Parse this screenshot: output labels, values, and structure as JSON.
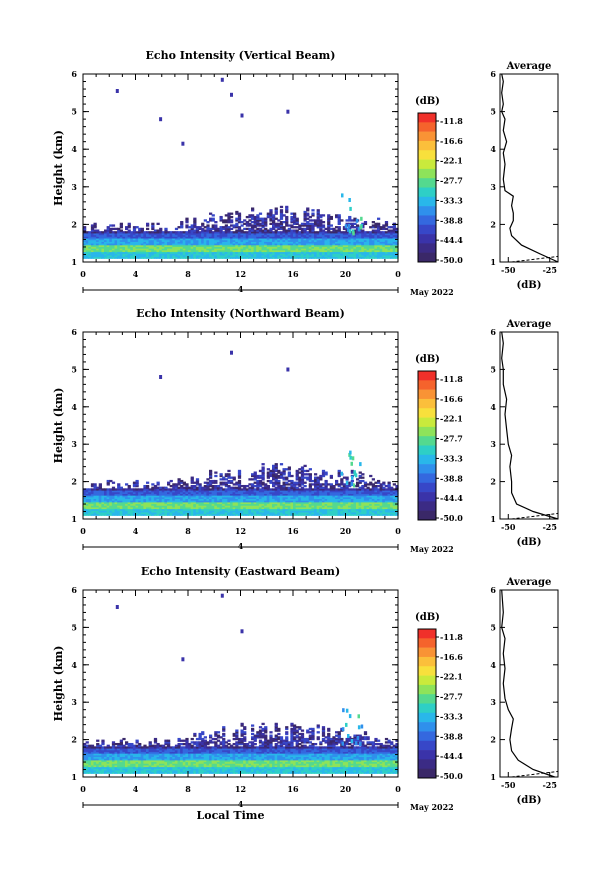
{
  "chart_data": [
    {
      "type": "heatmap",
      "title": "Echo Intensity (Vertical Beam)",
      "xlabel": "",
      "ylabel": "Height (km)",
      "xlim": [
        0,
        24
      ],
      "ylim": [
        1,
        6
      ],
      "xticks": [
        "0",
        "4",
        "8",
        "12",
        "16",
        "20",
        "0"
      ],
      "yticks": [
        "1",
        "2",
        "3",
        "4",
        "5",
        "6"
      ],
      "date_label": "May 2022",
      "date_marker": "4",
      "colorbar": {
        "unit": "(dB)",
        "ticks": [
          "-11.8",
          "-16.6",
          "-22.1",
          "-27.7",
          "-33.3",
          "-38.8",
          "-44.4",
          "-50.0"
        ],
        "colors": [
          "#f0302a",
          "#f5632c",
          "#f99335",
          "#fbbf3b",
          "#f8e03c",
          "#c9ea3c",
          "#8ee35a",
          "#54d98f",
          "#2ecfc6",
          "#29b7ea",
          "#2f90ec",
          "#3468df",
          "#3747c8",
          "#3a33a9",
          "#3b2b85",
          "#3a2868"
        ]
      },
      "average": {
        "title": "Average",
        "xlabel": "(dB)",
        "xticks": [
          "-50",
          "-25"
        ],
        "yticks": [
          "1",
          "2",
          "3",
          "4",
          "5",
          "6"
        ],
        "profile": [
          [
            -20,
            1.0
          ],
          [
            -30,
            1.2
          ],
          [
            -42,
            1.45
          ],
          [
            -48,
            1.7
          ],
          [
            -49,
            1.9
          ],
          [
            -47,
            2.1
          ],
          [
            -47,
            2.3
          ],
          [
            -48,
            2.5
          ],
          [
            -47,
            2.75
          ],
          [
            -52,
            2.9
          ],
          [
            -53,
            3.2
          ],
          [
            -52,
            3.6
          ],
          [
            -53,
            3.9
          ],
          [
            -51,
            4.2
          ],
          [
            -53,
            4.5
          ],
          [
            -52,
            4.8
          ],
          [
            -54,
            5.0
          ],
          [
            -53,
            5.2
          ],
          [
            -54,
            5.5
          ],
          [
            -53,
            5.8
          ],
          [
            -54,
            6.0
          ]
        ]
      }
    },
    {
      "type": "heatmap",
      "title": "Echo Intensity (Northward Beam)",
      "xlabel": "",
      "ylabel": "Height (km)",
      "xlim": [
        0,
        24
      ],
      "ylim": [
        1,
        6
      ],
      "xticks": [
        "0",
        "4",
        "8",
        "12",
        "16",
        "20",
        "0"
      ],
      "yticks": [
        "1",
        "2",
        "3",
        "4",
        "5",
        "6"
      ],
      "date_label": "May 2022",
      "date_marker": "4",
      "colorbar": {
        "unit": "(dB)",
        "ticks": [
          "-11.8",
          "-16.6",
          "-22.1",
          "-27.7",
          "-33.3",
          "-38.8",
          "-44.4",
          "-50.0"
        ]
      },
      "average": {
        "title": "Average",
        "xlabel": "(dB)",
        "xticks": [
          "-50",
          "-25"
        ],
        "yticks": [
          "1",
          "2",
          "3",
          "4",
          "5",
          "6"
        ],
        "profile": [
          [
            -20,
            1.0
          ],
          [
            -35,
            1.2
          ],
          [
            -45,
            1.4
          ],
          [
            -48,
            1.7
          ],
          [
            -48,
            2.0
          ],
          [
            -49,
            2.4
          ],
          [
            -48,
            2.7
          ],
          [
            -50,
            3.0
          ],
          [
            -51,
            3.4
          ],
          [
            -52,
            3.8
          ],
          [
            -51,
            4.2
          ],
          [
            -53,
            4.6
          ],
          [
            -53,
            5.0
          ],
          [
            -54,
            5.3
          ],
          [
            -53,
            5.7
          ],
          [
            -54,
            6.0
          ]
        ]
      }
    },
    {
      "type": "heatmap",
      "title": "Echo Intensity (Eastward Beam)",
      "xlabel": "Local Time",
      "ylabel": "Height (km)",
      "xlim": [
        0,
        24
      ],
      "ylim": [
        1,
        6
      ],
      "xticks": [
        "0",
        "4",
        "8",
        "12",
        "16",
        "20",
        "0"
      ],
      "yticks": [
        "1",
        "2",
        "3",
        "4",
        "5",
        "6"
      ],
      "date_label": "May 2022",
      "date_marker": "4",
      "colorbar": {
        "unit": "(dB)",
        "ticks": [
          "-11.8",
          "-16.6",
          "-22.1",
          "-27.7",
          "-33.3",
          "-38.8",
          "-44.4",
          "-50.0"
        ]
      },
      "average": {
        "title": "Average",
        "xlabel": "(dB)",
        "xticks": [
          "-50",
          "-25"
        ],
        "yticks": [
          "1",
          "2",
          "3",
          "4",
          "5",
          "6"
        ],
        "profile": [
          [
            -22,
            1.0
          ],
          [
            -35,
            1.2
          ],
          [
            -44,
            1.45
          ],
          [
            -48,
            1.7
          ],
          [
            -49,
            2.0
          ],
          [
            -48,
            2.3
          ],
          [
            -47,
            2.55
          ],
          [
            -50,
            2.8
          ],
          [
            -52,
            3.1
          ],
          [
            -53,
            3.5
          ],
          [
            -52,
            3.9
          ],
          [
            -53,
            4.3
          ],
          [
            -52,
            4.7
          ],
          [
            -54,
            5.0
          ],
          [
            -53,
            5.4
          ],
          [
            -54,
            6.0
          ]
        ]
      }
    }
  ]
}
